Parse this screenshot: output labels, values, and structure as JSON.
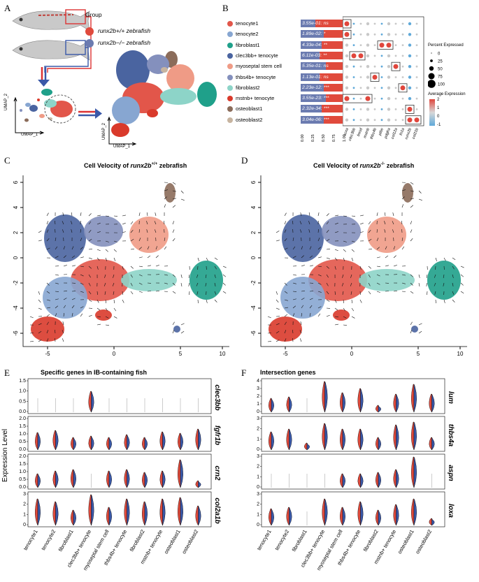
{
  "panels": {
    "A": "A",
    "B": "B",
    "C": "C",
    "D": "D",
    "E": "E",
    "F": "F"
  },
  "panelA": {
    "group_title": "Group",
    "group1": "runx2b+/+ zebrafish",
    "group2": "runx2b−/− zebrafish",
    "umap_x": "UMAP_1",
    "umap_y": "UMAP_2",
    "colors": {
      "wt": "#e04a3c",
      "ko": "#6b7bb0"
    }
  },
  "panelB": {
    "cell_types": [
      "tenocyte1",
      "tenocyte2",
      "fibroblast1",
      "clec3bb+ tenocyte",
      "myoseptal stem cell",
      "thbs4b+ tenocyte",
      "fibroblast2",
      "mstnb+ tenocyte",
      "osteoblast1",
      "osteoblast2"
    ],
    "cell_colors": [
      "#e2564a",
      "#87a6d1",
      "#1fa08a",
      "#4a64a0",
      "#ef9b86",
      "#8490bd",
      "#8dd4c8",
      "#d93a2b",
      "#8b6c5a",
      "#c7b4a0"
    ],
    "pvalues": [
      "3.55e-01: ns",
      "1.89e-02: *",
      "4.33e-04: **",
      "6.11e-03: **",
      "5.35e-01: ns",
      "1.13e-01: ns",
      "2.23e-12: ***",
      "3.55e-23: ***",
      "2.32e-34: ***",
      "3.04e-06: ***"
    ],
    "proportions": [
      0.35,
      0.55,
      0.5,
      0.45,
      0.6,
      0.45,
      0.55,
      0.6,
      0.5,
      0.55
    ],
    "genes": [
      "scxa",
      "clec3bb",
      "fmod",
      "mstnb",
      "thbs4b",
      "ptbe",
      "pdgfra",
      "col12a",
      "fn1a",
      "runx2b",
      "col21b"
    ],
    "axis_ticks": [
      "0.00",
      "0.25",
      "0.50",
      "0.75",
      "1.00"
    ],
    "pct_title": "Percent Expressed",
    "pct_values": [
      "0",
      "25",
      "50",
      "75",
      "100"
    ],
    "avg_title": "Average Expression",
    "avg_ticks": [
      "2",
      "1",
      "0",
      "-1"
    ]
  },
  "panelC": {
    "title_pre": "Cell Velocity of ",
    "title_it": "runx2b",
    "title_sup": "+/+",
    "title_post": " zebrafish",
    "xticks": [
      "-5",
      "0",
      "5",
      "10"
    ],
    "yticks": [
      "6",
      "4",
      "2",
      "0",
      "-2",
      "-4",
      "-6"
    ]
  },
  "panelD": {
    "title_pre": "Cell Velocity of ",
    "title_it": "runx2b",
    "title_sup": "-/-",
    "title_post": " zebrafish",
    "xticks": [
      "-5",
      "0",
      "5",
      "10"
    ],
    "yticks": [
      "6",
      "4",
      "2",
      "0",
      "-2",
      "-4",
      "-6"
    ]
  },
  "panelE": {
    "title": "Specific genes in IB-containing fish",
    "ylabel": "Expression Level",
    "genes": [
      "clec3bb",
      "fgfr1b",
      "crn2",
      "col2a1b"
    ],
    "yticks": [
      [
        "1.5",
        "1.0",
        "0.5",
        "0.0"
      ],
      [
        "2.0",
        "1.5",
        "1.0",
        "0.5",
        "0.0"
      ],
      [
        "2.0",
        "1.5",
        "1.0",
        "0.5",
        "0.0"
      ],
      [
        "3",
        "2",
        "1",
        "0"
      ]
    ],
    "xlabels": [
      "tenocyte1",
      "tenocyte2",
      "fibroblast1",
      "clec3bb+ tenocyte",
      "myoseptal stem cell",
      "thbs4b+ tenocyte",
      "fibroblast2",
      "mstnb+ tenocyte",
      "osteoblast1",
      "osteoblast2"
    ]
  },
  "panelF": {
    "title": "Intersection genes",
    "genes": [
      "lum",
      "thbs4a",
      "aspn",
      "loxa"
    ],
    "yticks": [
      [
        "4",
        "3",
        "2",
        "1",
        "0"
      ],
      [
        "3",
        "2",
        "1",
        "0"
      ],
      [
        "3",
        "2",
        "1",
        "0"
      ],
      [
        "3",
        "2",
        "1",
        "0"
      ]
    ],
    "xlabels": [
      "tenocyte1",
      "tenocyte2",
      "fibroblast1",
      "clec3bb+ tenocyte",
      "myoseptal stem cell",
      "thbs4b+ tenocyte",
      "fibroblast2",
      "mstnb+ tenocyte",
      "osteoblast1",
      "osteoblast2"
    ]
  }
}
